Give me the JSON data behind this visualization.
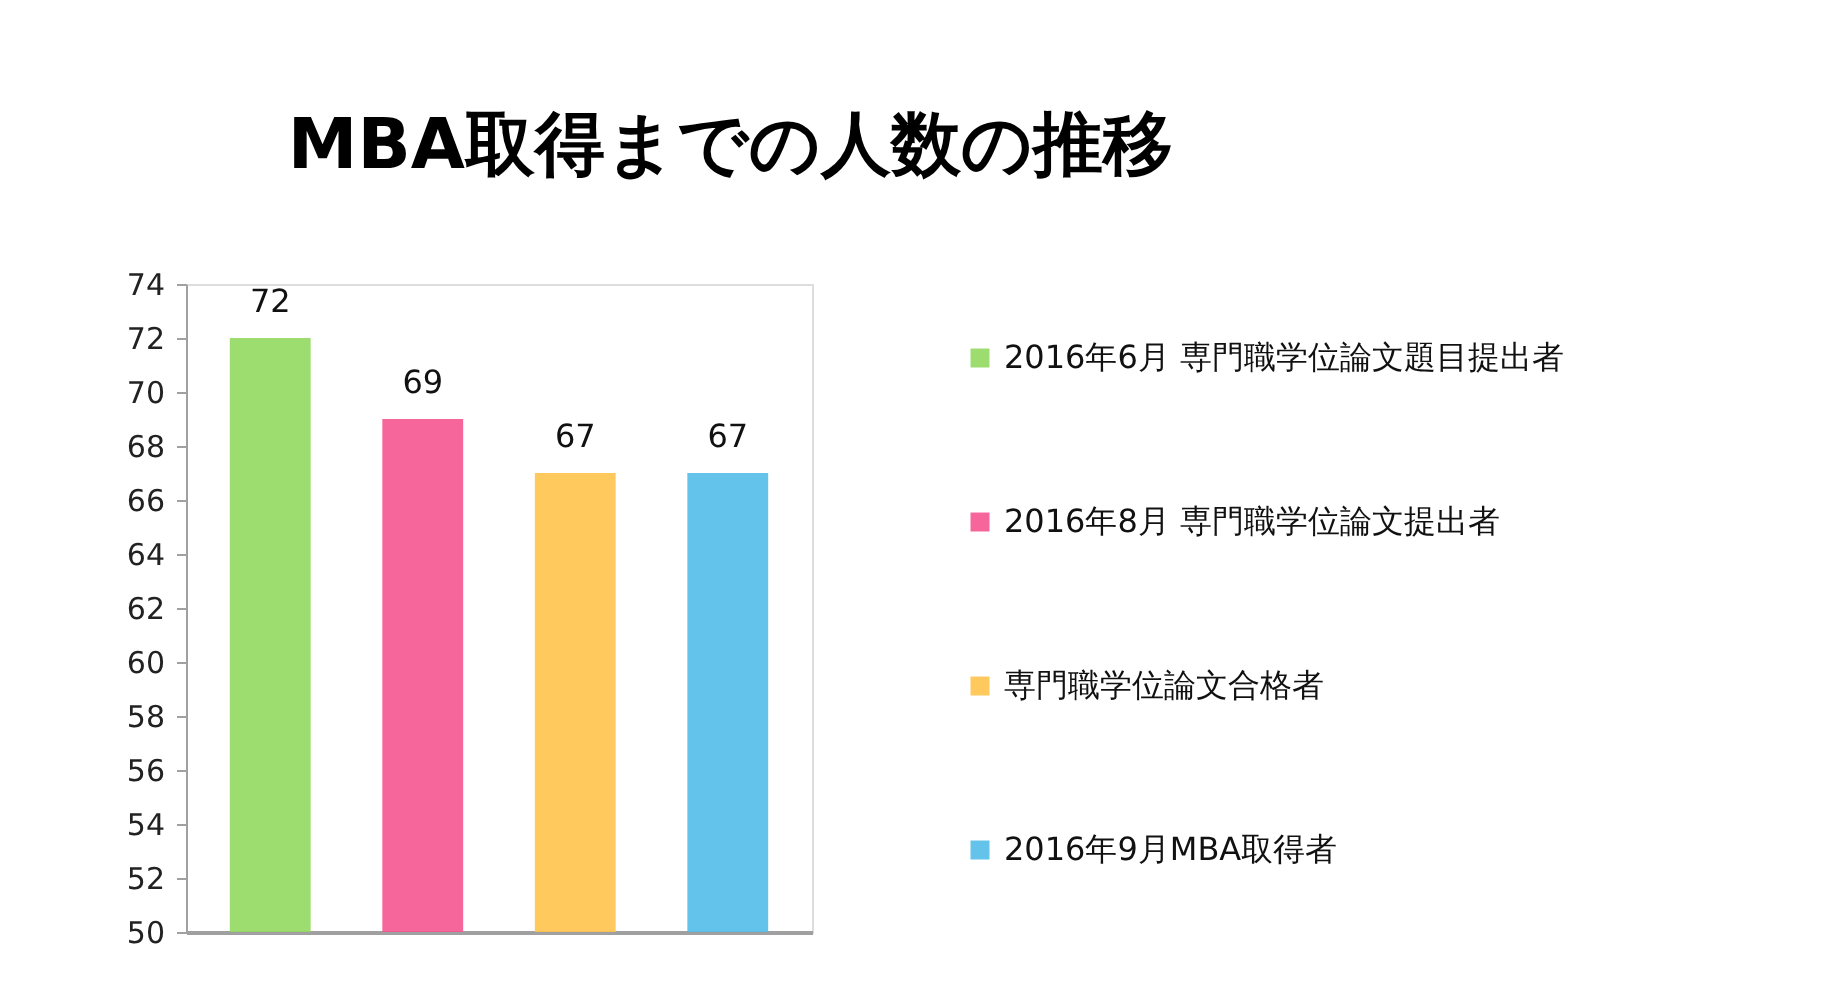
{
  "chart_data": {
    "type": "bar",
    "title": "MBA取得までの人数の推移",
    "categories": [
      null
    ],
    "series": [
      {
        "name": "2016年6月 専門職学位論文題目提出者",
        "color": "#92d85e",
        "values": [
          72
        ]
      },
      {
        "name": "2016年8月 専門職学位論文提出者",
        "color": "#f5558f",
        "values": [
          69
        ]
      },
      {
        "name": "専門職学位論文合格者",
        "color": "#ffc34d",
        "values": [
          67
        ]
      },
      {
        "name": "2016年9月MBA取得者",
        "color": "#52bde8",
        "values": [
          67
        ]
      }
    ],
    "ylim": [
      50,
      74
    ],
    "yticks": [
      50,
      52,
      54,
      56,
      58,
      60,
      62,
      64,
      66,
      68,
      70,
      72,
      74
    ],
    "data_labels": true,
    "legend": "right",
    "tick_labels": "y"
  }
}
